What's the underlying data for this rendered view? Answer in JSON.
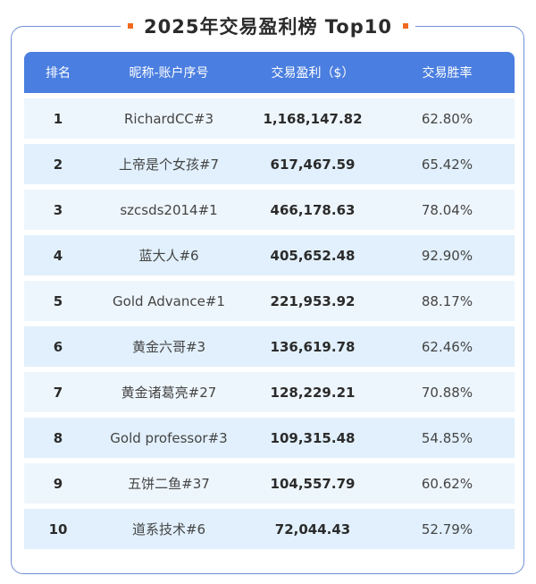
{
  "title": "2025年交易盈利榜 Top10",
  "accent_color": "#ef6a1c",
  "header_color": "#4a7ee0",
  "table": {
    "headers": [
      "排名",
      "昵称-账户序号",
      "交易盈利（$）",
      "交易胜率"
    ],
    "rows": [
      {
        "rank": "1",
        "name": "RichardCC#3",
        "profit": "1,168,147.82",
        "win_rate": "62.80%"
      },
      {
        "rank": "2",
        "name": "上帝是个女孩#7",
        "profit": "617,467.59",
        "win_rate": "65.42%"
      },
      {
        "rank": "3",
        "name": "szcsds2014#1",
        "profit": "466,178.63",
        "win_rate": "78.04%"
      },
      {
        "rank": "4",
        "name": "蓝大人#6",
        "profit": "405,652.48",
        "win_rate": "92.90%"
      },
      {
        "rank": "5",
        "name": "Gold Advance#1",
        "profit": "221,953.92",
        "win_rate": "88.17%"
      },
      {
        "rank": "6",
        "name": "黄金六哥#3",
        "profit": "136,619.78",
        "win_rate": "62.46%"
      },
      {
        "rank": "7",
        "name": "黄金诸葛亮#27",
        "profit": "128,229.21",
        "win_rate": "70.88%"
      },
      {
        "rank": "8",
        "name": "Gold professor#3",
        "profit": "109,315.48",
        "win_rate": "54.85%"
      },
      {
        "rank": "9",
        "name": "五饼二鱼#37",
        "profit": "104,557.79",
        "win_rate": "60.62%"
      },
      {
        "rank": "10",
        "name": "道系技术#6",
        "profit": "72,044.43",
        "win_rate": "52.79%"
      }
    ]
  }
}
